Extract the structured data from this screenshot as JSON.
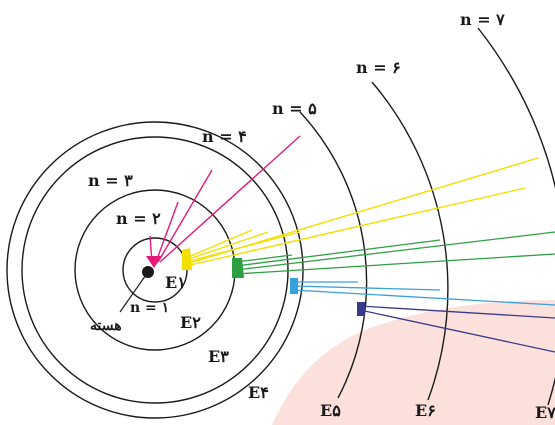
{
  "orbit_labels": {
    "n1": "n = ۱",
    "n2": "n = ۲",
    "n3": "n = ۳",
    "n4": "n = ۴",
    "n5": "n = ۵",
    "n6": "n = ۶",
    "n7": "n = ۷"
  },
  "energy_labels": {
    "e1": "E۱",
    "e2": "E۲",
    "e3": "E۳",
    "e4": "E۴",
    "e5": "E۵",
    "e6": "E۶",
    "e7": "E۷"
  },
  "nucleus_label": "هسته",
  "colors": {
    "orbit": "#1a1a1a",
    "to_n1": "#e6197a",
    "to_n2": "#f2e000",
    "to_n3": "#2da043",
    "to_n4": "#3aa0dc",
    "to_n5": "#3a3a8c",
    "shaded_region": "#fbe0dc"
  }
}
